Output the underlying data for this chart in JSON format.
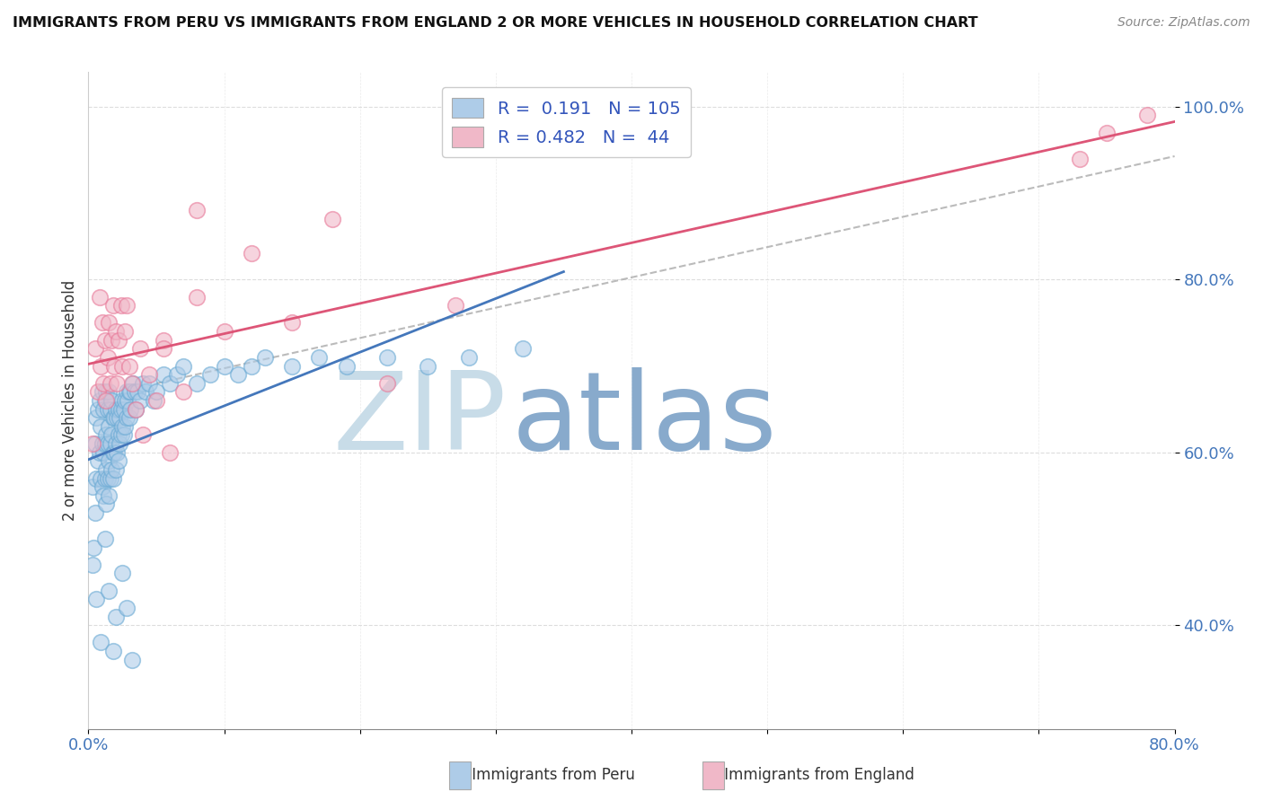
{
  "title": "IMMIGRANTS FROM PERU VS IMMIGRANTS FROM ENGLAND 2 OR MORE VEHICLES IN HOUSEHOLD CORRELATION CHART",
  "source": "Source: ZipAtlas.com",
  "ylabel": "2 or more Vehicles in Household",
  "xlim": [
    0.0,
    0.8
  ],
  "ylim": [
    0.28,
    1.04
  ],
  "y_ticks": [
    0.4,
    0.6,
    0.8,
    1.0
  ],
  "y_tick_labels": [
    "40.0%",
    "60.0%",
    "80.0%",
    "100.0%"
  ],
  "legend_peru_r": "0.191",
  "legend_peru_n": "105",
  "legend_england_r": "0.482",
  "legend_england_n": "44",
  "peru_color": "#aecce8",
  "england_color": "#f0b8c8",
  "peru_edge_color": "#6aaad4",
  "england_edge_color": "#e87898",
  "peru_line_color": "#4477bb",
  "england_line_color": "#dd5577",
  "watermark_zip_color": "#c8dce8",
  "watermark_atlas_color": "#88aacc",
  "background_color": "#ffffff",
  "grid_color": "#dddddd",
  "peru_scatter_x": [
    0.003,
    0.004,
    0.005,
    0.005,
    0.006,
    0.006,
    0.007,
    0.007,
    0.008,
    0.008,
    0.009,
    0.009,
    0.01,
    0.01,
    0.01,
    0.011,
    0.011,
    0.011,
    0.012,
    0.012,
    0.012,
    0.013,
    0.013,
    0.013,
    0.013,
    0.014,
    0.014,
    0.014,
    0.015,
    0.015,
    0.015,
    0.015,
    0.016,
    0.016,
    0.016,
    0.017,
    0.017,
    0.017,
    0.018,
    0.018,
    0.018,
    0.019,
    0.019,
    0.02,
    0.02,
    0.02,
    0.021,
    0.021,
    0.022,
    0.022,
    0.022,
    0.023,
    0.023,
    0.024,
    0.024,
    0.025,
    0.025,
    0.026,
    0.026,
    0.027,
    0.027,
    0.028,
    0.028,
    0.029,
    0.03,
    0.03,
    0.031,
    0.031,
    0.033,
    0.034,
    0.035,
    0.036,
    0.038,
    0.04,
    0.042,
    0.045,
    0.048,
    0.05,
    0.055,
    0.06,
    0.065,
    0.07,
    0.08,
    0.09,
    0.1,
    0.11,
    0.12,
    0.13,
    0.15,
    0.17,
    0.19,
    0.22,
    0.25,
    0.28,
    0.32,
    0.003,
    0.006,
    0.009,
    0.012,
    0.015,
    0.018,
    0.02,
    0.025,
    0.028,
    0.032
  ],
  "peru_scatter_y": [
    0.56,
    0.49,
    0.61,
    0.53,
    0.64,
    0.57,
    0.65,
    0.59,
    0.66,
    0.6,
    0.63,
    0.57,
    0.67,
    0.61,
    0.56,
    0.65,
    0.6,
    0.55,
    0.66,
    0.61,
    0.57,
    0.67,
    0.62,
    0.58,
    0.54,
    0.65,
    0.61,
    0.57,
    0.67,
    0.63,
    0.59,
    0.55,
    0.65,
    0.61,
    0.57,
    0.66,
    0.62,
    0.58,
    0.64,
    0.6,
    0.57,
    0.64,
    0.6,
    0.65,
    0.61,
    0.58,
    0.64,
    0.6,
    0.65,
    0.62,
    0.59,
    0.64,
    0.61,
    0.65,
    0.62,
    0.66,
    0.63,
    0.65,
    0.62,
    0.66,
    0.63,
    0.67,
    0.64,
    0.66,
    0.67,
    0.64,
    0.67,
    0.65,
    0.68,
    0.67,
    0.65,
    0.67,
    0.66,
    0.68,
    0.67,
    0.68,
    0.66,
    0.67,
    0.69,
    0.68,
    0.69,
    0.7,
    0.68,
    0.69,
    0.7,
    0.69,
    0.7,
    0.71,
    0.7,
    0.71,
    0.7,
    0.71,
    0.7,
    0.71,
    0.72,
    0.47,
    0.43,
    0.38,
    0.5,
    0.44,
    0.37,
    0.41,
    0.46,
    0.42,
    0.36
  ],
  "england_scatter_x": [
    0.003,
    0.005,
    0.007,
    0.008,
    0.009,
    0.01,
    0.011,
    0.012,
    0.013,
    0.014,
    0.015,
    0.016,
    0.017,
    0.018,
    0.019,
    0.02,
    0.021,
    0.022,
    0.024,
    0.025,
    0.027,
    0.028,
    0.03,
    0.032,
    0.035,
    0.038,
    0.04,
    0.045,
    0.05,
    0.055,
    0.06,
    0.07,
    0.08,
    0.1,
    0.12,
    0.15,
    0.18,
    0.22,
    0.27,
    0.73,
    0.75,
    0.78,
    0.055,
    0.08
  ],
  "england_scatter_y": [
    0.61,
    0.72,
    0.67,
    0.78,
    0.7,
    0.75,
    0.68,
    0.73,
    0.66,
    0.71,
    0.75,
    0.68,
    0.73,
    0.77,
    0.7,
    0.74,
    0.68,
    0.73,
    0.77,
    0.7,
    0.74,
    0.77,
    0.7,
    0.68,
    0.65,
    0.72,
    0.62,
    0.69,
    0.66,
    0.73,
    0.6,
    0.67,
    0.78,
    0.74,
    0.83,
    0.75,
    0.87,
    0.68,
    0.77,
    0.94,
    0.97,
    0.99,
    0.72,
    0.88
  ]
}
